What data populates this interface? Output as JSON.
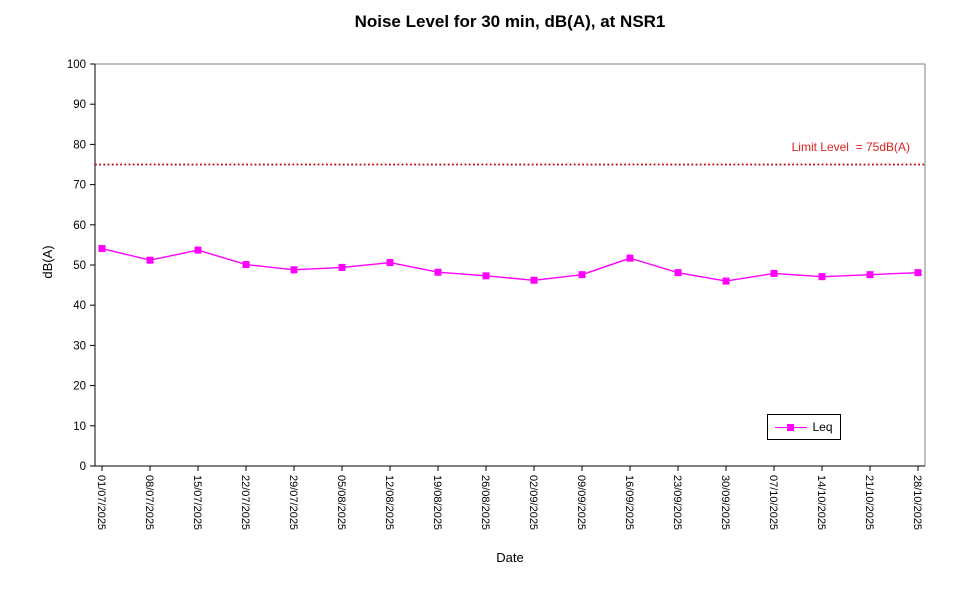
{
  "title": "Noise Level for 30 min, dB(A), at NSR1",
  "x_axis_title": "Date",
  "y_axis_title": "dB(A)",
  "limit_annotation": {
    "label": "Limit Level  = 75dB(A)",
    "value": 75
  },
  "legend": {
    "label": "Leq"
  },
  "colors": {
    "series": "#ff00ff",
    "limit_line": "#c00000",
    "limit_text": "#e01f1f",
    "axis": "#000000",
    "plot_border": "#808080",
    "text": "#000000"
  },
  "chart_data": {
    "type": "line",
    "title": "Noise Level for 30 min, dB(A), at NSR1",
    "xlabel": "Date",
    "ylabel": "dB(A)",
    "ylim": [
      0,
      100
    ],
    "ytick_step": 10,
    "grid": false,
    "legend_position": "inside-bottom-right",
    "categories": [
      "01/07/2025",
      "08/07/2025",
      "15/07/2025",
      "22/07/2025",
      "29/07/2025",
      "05/08/2025",
      "12/08/2025",
      "19/08/2025",
      "26/08/2025",
      "02/09/2025",
      "09/09/2025",
      "16/09/2025",
      "23/09/2025",
      "30/09/2025",
      "07/10/2025",
      "14/10/2025",
      "21/10/2025",
      "28/10/2025"
    ],
    "series": [
      {
        "name": "Leq",
        "color": "#ff00ff",
        "marker": "square",
        "values": [
          54.1,
          51.2,
          53.7,
          50.1,
          48.8,
          49.4,
          50.6,
          48.2,
          47.3,
          46.2,
          47.6,
          51.7,
          48.1,
          46.0,
          47.9,
          47.1,
          47.6,
          48.1
        ]
      }
    ],
    "annotations": [
      {
        "type": "hline",
        "y": 75,
        "style": "dotted",
        "color": "#c00000",
        "label": "Limit Level  = 75dB(A)"
      }
    ]
  }
}
